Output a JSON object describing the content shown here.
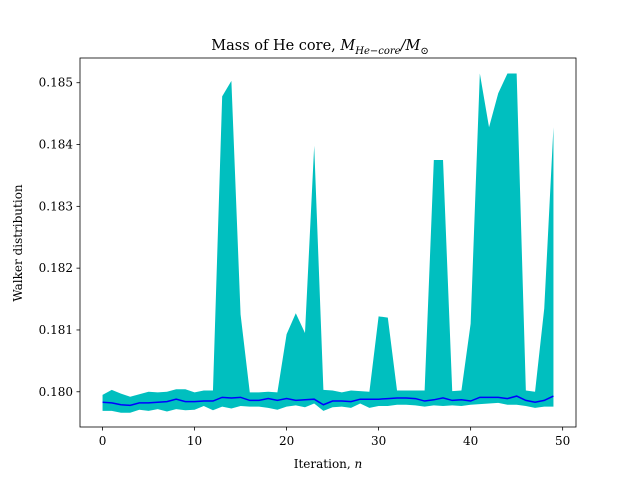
{
  "chart_data": {
    "type": "area",
    "title": "Mass of He core, ",
    "title_math": "M",
    "title_math_sub": "He−core",
    "title_math_tail": "/M",
    "title_math_sun": "⊙",
    "xlabel": "Iteration, ",
    "xlabel_math": "n",
    "ylabel": "Walker distribution",
    "xlim": [
      -2.45,
      51.45
    ],
    "ylim": [
      0.17943,
      0.1854
    ],
    "xticks": [
      0,
      10,
      20,
      30,
      40,
      50
    ],
    "yticks": [
      0.18,
      0.181,
      0.182,
      0.183,
      0.184,
      0.185
    ],
    "ytick_labels": [
      "0.180",
      "0.181",
      "0.182",
      "0.183",
      "0.184",
      "0.185"
    ],
    "grid": false,
    "colors": {
      "band": "#00bfbf",
      "median": "#0000ff"
    },
    "x": [
      0,
      1,
      2,
      3,
      4,
      5,
      6,
      7,
      8,
      9,
      10,
      11,
      12,
      13,
      14,
      15,
      16,
      17,
      18,
      19,
      20,
      21,
      22,
      23,
      24,
      25,
      26,
      27,
      28,
      29,
      30,
      31,
      32,
      33,
      34,
      35,
      36,
      37,
      38,
      39,
      40,
      41,
      42,
      43,
      44,
      45,
      46,
      47,
      48,
      49
    ],
    "series": [
      {
        "role": "upper band",
        "values": [
          0.17995,
          0.18003,
          0.17997,
          0.17992,
          0.17996,
          0.18,
          0.17999,
          0.18,
          0.18004,
          0.18004,
          0.17999,
          0.18002,
          0.18002,
          0.18478,
          0.18503,
          0.18125,
          0.17999,
          0.17999,
          0.18,
          0.17999,
          0.18093,
          0.18127,
          0.18095,
          0.18398,
          0.18003,
          0.18002,
          0.17999,
          0.18002,
          0.18001,
          0.18,
          0.18122,
          0.1812,
          0.18002,
          0.18002,
          0.18002,
          0.18002,
          0.18375,
          0.18375,
          0.18001,
          0.18002,
          0.1811,
          0.18515,
          0.18428,
          0.18483,
          0.18515,
          0.18515,
          0.18002,
          0.18,
          0.18135,
          0.18428
        ]
      },
      {
        "role": "lower band",
        "values": [
          0.17969,
          0.17969,
          0.17966,
          0.17966,
          0.17971,
          0.17969,
          0.17972,
          0.17968,
          0.17972,
          0.1797,
          0.17971,
          0.17977,
          0.1797,
          0.17976,
          0.17973,
          0.17977,
          0.17976,
          0.17976,
          0.17974,
          0.17971,
          0.17976,
          0.17978,
          0.17975,
          0.17981,
          0.17969,
          0.17975,
          0.17976,
          0.17974,
          0.17981,
          0.17974,
          0.17977,
          0.17977,
          0.17979,
          0.17979,
          0.17978,
          0.17976,
          0.17978,
          0.17977,
          0.17978,
          0.17977,
          0.17979,
          0.1798,
          0.17981,
          0.17982,
          0.17979,
          0.17979,
          0.17977,
          0.17974,
          0.17976,
          0.17976
        ]
      },
      {
        "role": "median",
        "values": [
          0.17983,
          0.17982,
          0.17979,
          0.17978,
          0.17982,
          0.17982,
          0.17983,
          0.17984,
          0.17988,
          0.17984,
          0.17984,
          0.17985,
          0.17985,
          0.17991,
          0.1799,
          0.17991,
          0.17986,
          0.17986,
          0.17989,
          0.17986,
          0.17989,
          0.17986,
          0.17987,
          0.17988,
          0.17979,
          0.17985,
          0.17985,
          0.17984,
          0.17988,
          0.17988,
          0.17988,
          0.17989,
          0.1799,
          0.1799,
          0.17989,
          0.17985,
          0.17987,
          0.1799,
          0.17986,
          0.17987,
          0.17985,
          0.17991,
          0.17991,
          0.17991,
          0.17989,
          0.17993,
          0.17986,
          0.17983,
          0.17986,
          0.17993
        ]
      }
    ]
  }
}
